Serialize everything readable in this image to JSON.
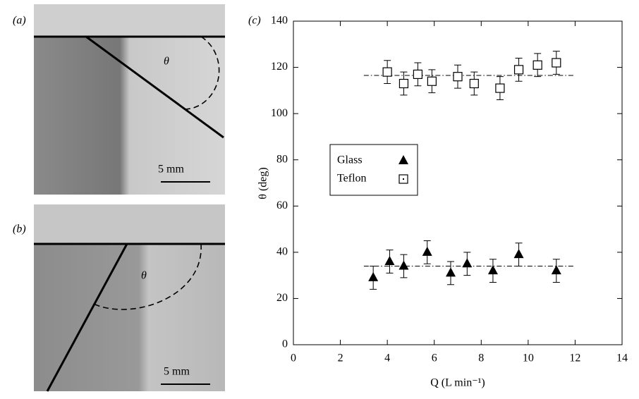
{
  "panels": {
    "a": {
      "label": "(a)",
      "angle": "θ",
      "scale": "5 mm"
    },
    "b": {
      "label": "(b)",
      "angle": "θ",
      "scale": "5 mm"
    }
  },
  "chart_data": {
    "type": "scatter",
    "panel_label": "(c)",
    "x_label": "Q (L min⁻¹)",
    "y_label": "θ (deg)",
    "xlim": [
      0,
      14
    ],
    "xticks": [
      0,
      2,
      4,
      6,
      8,
      10,
      12,
      14
    ],
    "ylim": [
      0,
      140
    ],
    "yticks": [
      0,
      20,
      40,
      60,
      80,
      100,
      120,
      140
    ],
    "series": [
      {
        "name": "Glass",
        "marker": "triangle",
        "color": "#000000",
        "x": [
          3.4,
          4.1,
          4.7,
          5.7,
          6.7,
          7.4,
          8.5,
          9.6,
          11.2
        ],
        "values": [
          29,
          36,
          34,
          40,
          31,
          35,
          32,
          39,
          32
        ],
        "errors": [
          5,
          5,
          5,
          5,
          5,
          5,
          5,
          5,
          5
        ],
        "fit": {
          "x": [
            3,
            12
          ],
          "values": [
            34,
            34
          ]
        }
      },
      {
        "name": "Teflon",
        "marker": "square",
        "color": "#000000",
        "x": [
          4.0,
          4.7,
          5.3,
          5.9,
          7.0,
          7.7,
          8.8,
          9.6,
          10.4,
          11.2
        ],
        "values": [
          118,
          113,
          117,
          114,
          116,
          113,
          111,
          119,
          121,
          122
        ],
        "errors": [
          5,
          5,
          5,
          5,
          5,
          5,
          5,
          5,
          5,
          5
        ],
        "fit": {
          "x": [
            3,
            12
          ],
          "values": [
            116.5,
            116.5
          ]
        }
      }
    ]
  }
}
